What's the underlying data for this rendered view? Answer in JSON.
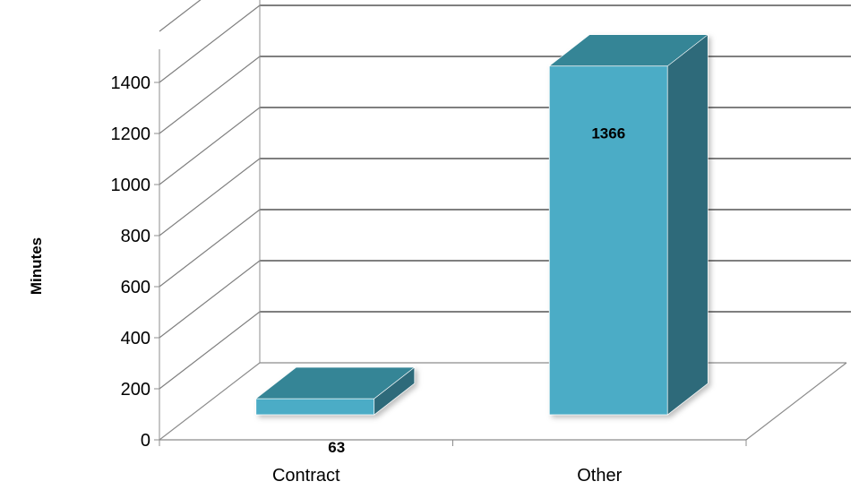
{
  "chart_data": {
    "type": "bar",
    "style": "3d-column",
    "categories": [
      "Contract",
      "Other"
    ],
    "values": [
      63,
      1366
    ],
    "data_labels": [
      "63",
      "1366"
    ],
    "title": "",
    "xlabel": "",
    "ylabel": "Minutes",
    "ylim": [
      0,
      1400
    ],
    "yticks": [
      "0",
      "200",
      "400",
      "600",
      "800",
      "1000",
      "1200",
      "1400"
    ],
    "grid": true,
    "legend": "none",
    "colors": {
      "bar_front": "#4BACC6",
      "bar_top": "#368596",
      "bar_side": "#2E6A7A",
      "gridline": "#7F7F7F",
      "axis": "#8C8C8C"
    }
  }
}
